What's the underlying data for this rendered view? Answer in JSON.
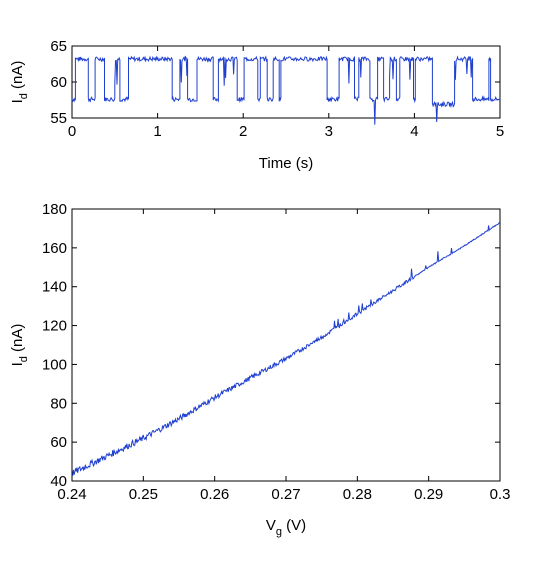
{
  "chart_data": [
    {
      "type": "line",
      "title": "",
      "xlabel": "Time (s)",
      "ylabel": {
        "symbol": "I",
        "subscript": "d",
        "unit": " (nA)"
      },
      "xlim": [
        0,
        5
      ],
      "ylim": [
        55,
        65
      ],
      "xticks": [
        "0",
        "1",
        "2",
        "3",
        "4",
        "5"
      ],
      "yticks": [
        "55",
        "60",
        "65"
      ],
      "grid": false,
      "series": [
        {
          "color": "#1f3fd0",
          "levels": {
            "high": 63.2,
            "low": 57.6,
            "lowest": 56.9
          },
          "segments": [
            [
              0.0,
              0.04,
              57.6
            ],
            [
              0.04,
              0.19,
              63.2
            ],
            [
              0.19,
              0.27,
              57.6
            ],
            [
              0.27,
              0.38,
              63.2
            ],
            [
              0.38,
              0.5,
              57.6
            ],
            [
              0.5,
              0.56,
              63.2
            ],
            [
              0.56,
              0.66,
              57.6
            ],
            [
              0.66,
              1.17,
              63.2
            ],
            [
              1.17,
              1.26,
              57.6
            ],
            [
              1.26,
              1.35,
              63.2
            ],
            [
              1.35,
              1.46,
              57.6
            ],
            [
              1.46,
              1.65,
              63.2
            ],
            [
              1.65,
              1.71,
              57.6
            ],
            [
              1.71,
              1.93,
              63.2
            ],
            [
              1.93,
              2.01,
              57.6
            ],
            [
              2.01,
              2.17,
              63.2
            ],
            [
              2.17,
              2.2,
              57.6
            ],
            [
              2.2,
              2.28,
              63.2
            ],
            [
              2.28,
              2.35,
              57.6
            ],
            [
              2.35,
              2.42,
              63.2
            ],
            [
              2.42,
              2.44,
              57.6
            ],
            [
              2.44,
              2.98,
              63.2
            ],
            [
              2.98,
              3.12,
              57.6
            ],
            [
              3.12,
              3.3,
              63.2
            ],
            [
              3.3,
              3.35,
              57.6
            ],
            [
              3.35,
              3.48,
              63.2
            ],
            [
              3.48,
              3.57,
              57.6
            ],
            [
              3.57,
              3.64,
              63.2
            ],
            [
              3.64,
              3.71,
              57.6
            ],
            [
              3.71,
              3.79,
              63.2
            ],
            [
              3.79,
              3.83,
              57.6
            ],
            [
              3.83,
              3.99,
              63.2
            ],
            [
              3.99,
              4.01,
              57.6
            ],
            [
              4.01,
              4.21,
              63.2
            ],
            [
              4.21,
              4.47,
              56.9
            ],
            [
              4.47,
              4.68,
              63.2
            ],
            [
              4.68,
              4.87,
              57.6
            ],
            [
              4.87,
              4.89,
              63.2
            ],
            [
              4.89,
              5.0,
              57.6
            ]
          ]
        }
      ]
    },
    {
      "type": "line",
      "title": "",
      "xlabel": {
        "symbol": "V",
        "subscript": "g",
        "unit": " (V)"
      },
      "ylabel": {
        "symbol": "I",
        "subscript": "d",
        "unit": " (nA)"
      },
      "xlim": [
        0.24,
        0.3
      ],
      "ylim": [
        40,
        180
      ],
      "xticks": [
        "0.24",
        "0.25",
        "0.26",
        "0.27",
        "0.28",
        "0.29",
        "0.3"
      ],
      "yticks": [
        "40",
        "60",
        "80",
        "100",
        "120",
        "140",
        "160",
        "180"
      ],
      "grid": false,
      "series": [
        {
          "color": "#1f3fd0",
          "x": [
            0.24,
            0.245,
            0.25,
            0.255,
            0.26,
            0.265,
            0.27,
            0.275,
            0.28,
            0.285,
            0.29,
            0.295,
            0.3
          ],
          "y": [
            44,
            53,
            62,
            72,
            83,
            93,
            103,
            114,
            126,
            138,
            150,
            161,
            173
          ]
        }
      ]
    }
  ]
}
